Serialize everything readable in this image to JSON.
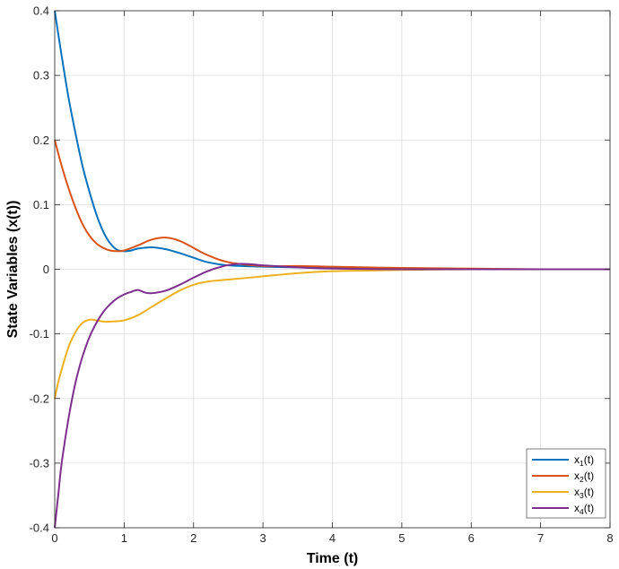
{
  "chart_data": {
    "type": "line",
    "xlabel": "Time (t)",
    "ylabel": "State Variables (x(t))",
    "xlim": [
      0,
      8
    ],
    "ylim": [
      -0.4,
      0.4
    ],
    "xticks": [
      "0",
      "1",
      "2",
      "3",
      "4",
      "5",
      "6",
      "7",
      "8"
    ],
    "yticks": [
      "-0.4",
      "-0.3",
      "-0.2",
      "-0.1",
      "0",
      "0.1",
      "0.2",
      "0.3",
      "0.4"
    ],
    "grid": true,
    "legend_position": "bottom-right",
    "series": [
      {
        "name": "x1(t)",
        "legend_base": "x",
        "legend_sub": "1",
        "legend_suffix": "(t)",
        "color": "#0072BD",
        "x": [
          0,
          0.1,
          0.2,
          0.3,
          0.4,
          0.5,
          0.6,
          0.7,
          0.8,
          0.9,
          1.0,
          1.1,
          1.2,
          1.4,
          1.6,
          1.8,
          2.0,
          2.2,
          2.5,
          3.0,
          3.5,
          4.0,
          5.0,
          6.0,
          7.0,
          8.0
        ],
        "y": [
          0.4,
          0.33,
          0.265,
          0.21,
          0.16,
          0.12,
          0.085,
          0.058,
          0.04,
          0.03,
          0.028,
          0.029,
          0.032,
          0.034,
          0.031,
          0.025,
          0.018,
          0.011,
          0.006,
          0.004,
          0.003,
          0.002,
          0.001,
          0.0,
          0.0,
          0.0
        ]
      },
      {
        "name": "x2(t)",
        "legend_base": "x",
        "legend_sub": "2",
        "legend_suffix": "(t)",
        "color": "#D95319",
        "x": [
          0,
          0.1,
          0.2,
          0.3,
          0.4,
          0.5,
          0.6,
          0.7,
          0.8,
          0.9,
          1.0,
          1.2,
          1.4,
          1.6,
          1.8,
          2.0,
          2.2,
          2.5,
          3.0,
          3.5,
          4.0,
          4.5,
          5.0,
          6.0,
          7.0,
          8.0
        ],
        "y": [
          0.2,
          0.16,
          0.125,
          0.095,
          0.07,
          0.052,
          0.04,
          0.033,
          0.029,
          0.028,
          0.029,
          0.037,
          0.046,
          0.049,
          0.044,
          0.033,
          0.022,
          0.011,
          0.005,
          0.005,
          0.004,
          0.003,
          0.002,
          0.001,
          0.0,
          0.0
        ]
      },
      {
        "name": "x3(t)",
        "legend_base": "x",
        "legend_sub": "3",
        "legend_suffix": "(t)",
        "color": "#EDB120",
        "x": [
          0,
          0.05,
          0.1,
          0.2,
          0.3,
          0.4,
          0.5,
          0.6,
          0.7,
          0.8,
          1.0,
          1.2,
          1.4,
          1.6,
          1.8,
          2.0,
          2.2,
          2.5,
          3.0,
          3.5,
          4.0,
          4.5,
          5.0,
          6.0,
          7.0,
          8.0
        ],
        "y": [
          -0.2,
          -0.175,
          -0.155,
          -0.12,
          -0.097,
          -0.083,
          -0.078,
          -0.079,
          -0.081,
          -0.081,
          -0.079,
          -0.071,
          -0.058,
          -0.045,
          -0.033,
          -0.024,
          -0.019,
          -0.016,
          -0.011,
          -0.006,
          -0.003,
          -0.002,
          -0.001,
          0.0,
          0.0,
          0.0
        ]
      },
      {
        "name": "x4(t)",
        "legend_base": "x",
        "legend_sub": "4",
        "legend_suffix": "(t)",
        "color": "#7E2F8E",
        "x": [
          0,
          0.05,
          0.1,
          0.2,
          0.3,
          0.4,
          0.5,
          0.6,
          0.7,
          0.8,
          0.9,
          1.0,
          1.1,
          1.2,
          1.3,
          1.4,
          1.6,
          1.8,
          2.0,
          2.2,
          2.4,
          2.6,
          2.8,
          3.0,
          3.5,
          4.0,
          5.0,
          6.0,
          7.0,
          8.0
        ],
        "y": [
          -0.4,
          -0.35,
          -0.3,
          -0.23,
          -0.175,
          -0.135,
          -0.105,
          -0.083,
          -0.066,
          -0.054,
          -0.045,
          -0.039,
          -0.035,
          -0.032,
          -0.036,
          -0.037,
          -0.033,
          -0.024,
          -0.013,
          -0.003,
          0.004,
          0.008,
          0.008,
          0.006,
          0.003,
          0.001,
          0.0,
          0.0,
          0.0,
          0.0
        ]
      }
    ]
  }
}
